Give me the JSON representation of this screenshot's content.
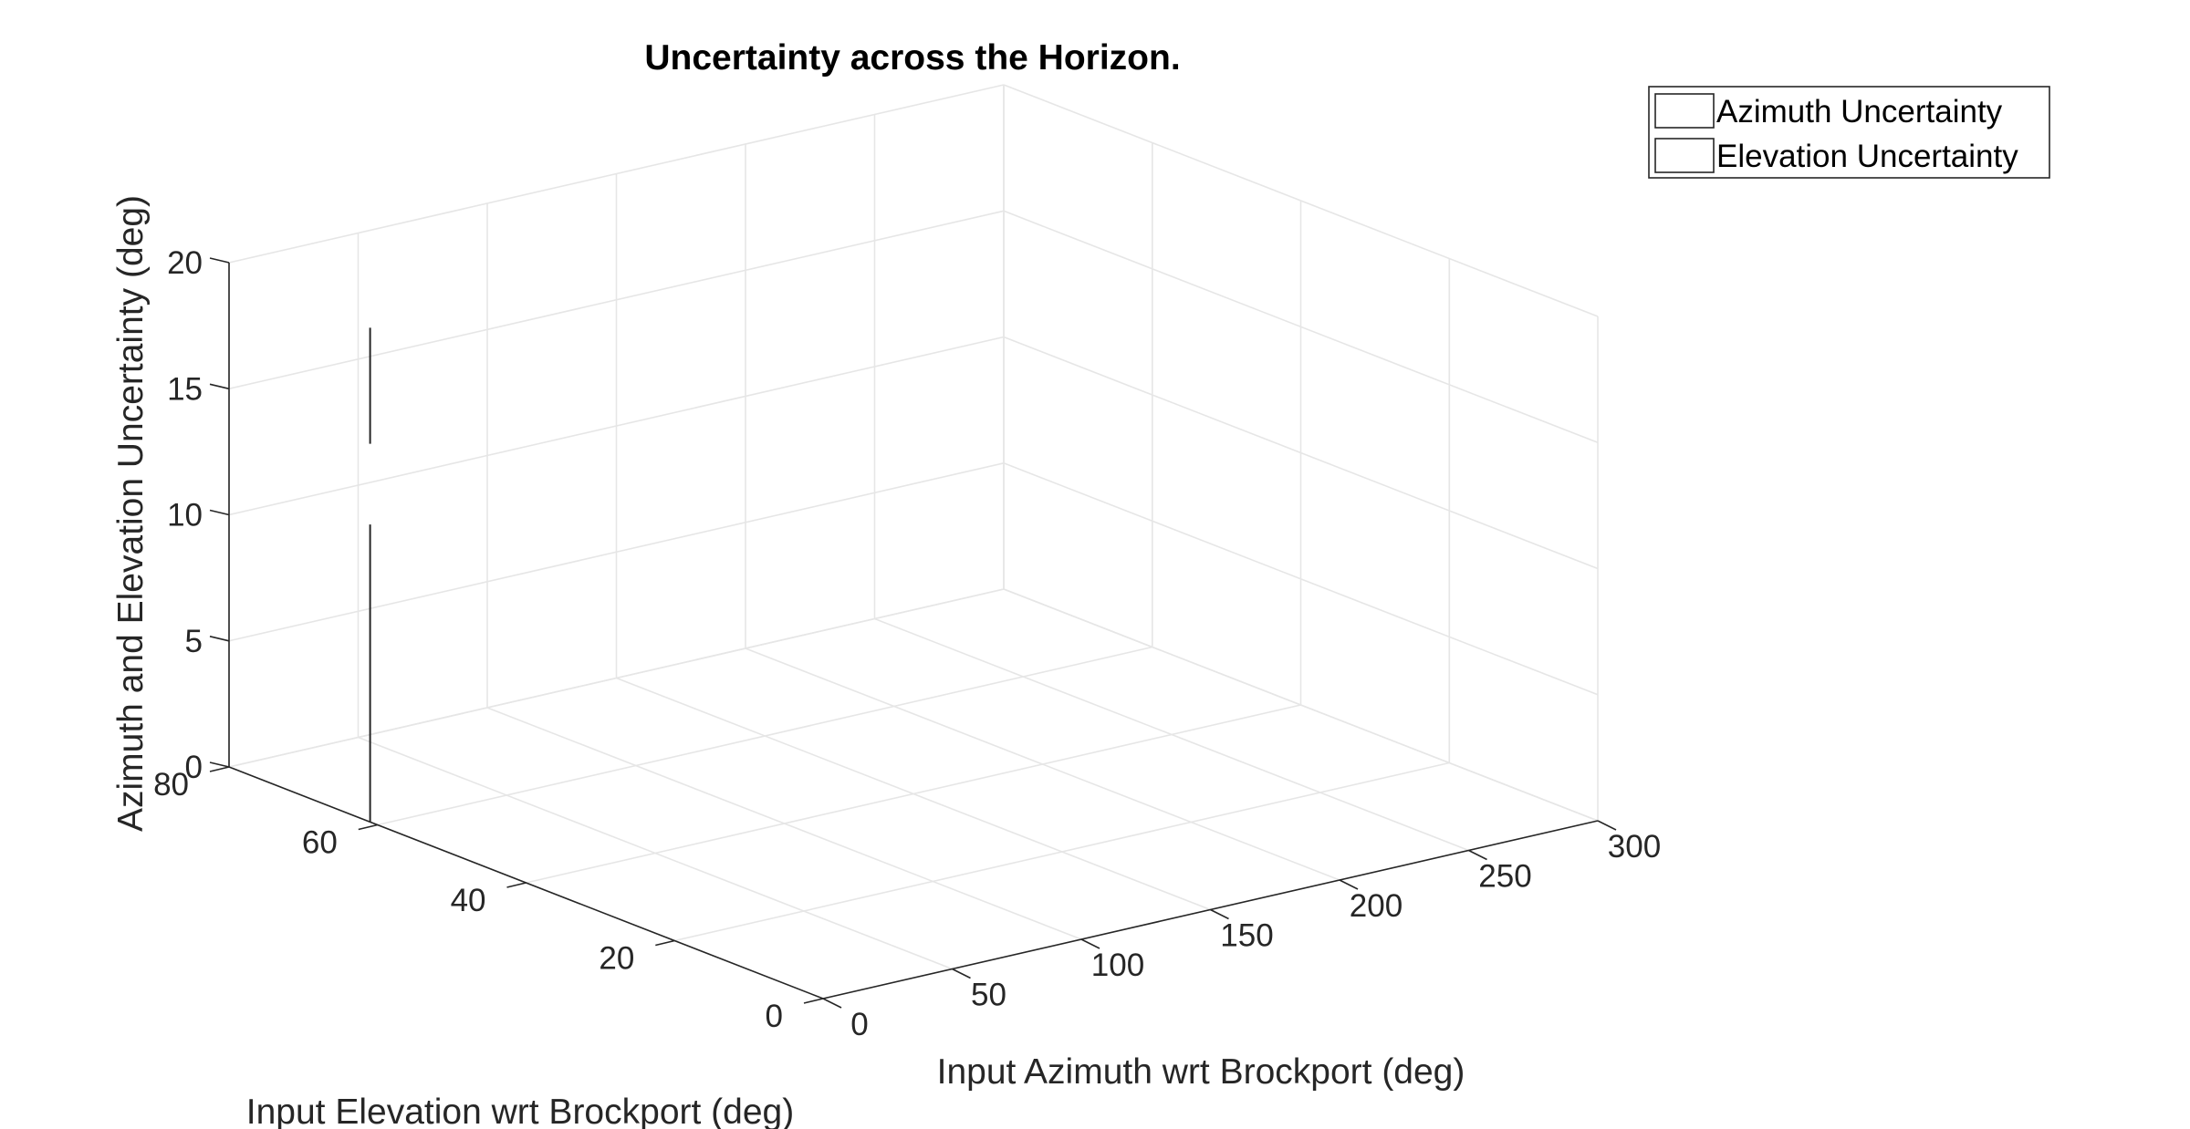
{
  "chart_data": {
    "type": "line",
    "projection": "3d",
    "title": "Uncertainty across the Horizon.",
    "xlabel": "Input Azimuth wrt Brockport (deg)",
    "ylabel": "Input Elevation wrt Brockport (deg)",
    "zlabel": "Azimuth and Elevation Uncertainty (deg)",
    "xlim": [
      0,
      300
    ],
    "ylim": [
      0,
      80
    ],
    "zlim": [
      0,
      20
    ],
    "xticks": [
      0,
      50,
      100,
      150,
      200,
      250,
      300
    ],
    "yticks": [
      0,
      20,
      40,
      60,
      80
    ],
    "zticks": [
      0,
      5,
      10,
      15,
      20
    ],
    "grid": true,
    "legend_position": "top-right",
    "legend": [
      "Azimuth Uncertainty",
      "Elevation Uncertainty"
    ],
    "series": [
      {
        "name": "Azimuth Uncertainty",
        "color": "#262626",
        "points": [
          {
            "x": 0,
            "y": 61,
            "z": 0
          },
          {
            "x": 0,
            "y": 61,
            "z": 1.7
          },
          {
            "x": 0,
            "y": 61,
            "z": 11.8
          }
        ]
      },
      {
        "name": "Elevation Uncertainty",
        "color": "#262626",
        "points": [
          {
            "x": 0,
            "y": 61,
            "z": 15
          },
          {
            "x": 0,
            "y": 61,
            "z": 19.6
          }
        ]
      }
    ]
  }
}
